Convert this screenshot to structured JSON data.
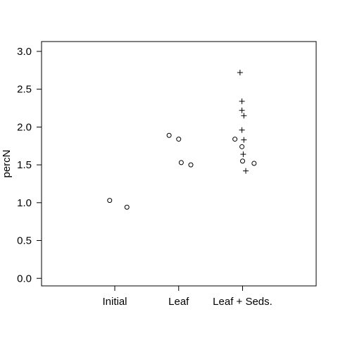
{
  "chart_data": {
    "type": "scatter",
    "title": "",
    "xlabel": "",
    "ylabel": "percN",
    "categories": [
      "Initial",
      "Leaf",
      "Leaf + Seds."
    ],
    "ylim": [
      -0.1,
      3.13
    ],
    "yticks": [
      0.0,
      0.5,
      1.0,
      1.5,
      2.0,
      2.5,
      3.0
    ],
    "ytick_labels": [
      "0.0",
      "0.5",
      "1.0",
      "1.5",
      "2.0",
      "2.5",
      "3.0"
    ],
    "grid": false,
    "legend": "none",
    "series": [
      {
        "marker": "circle",
        "points": [
          {
            "category": 0,
            "offset": -0.08,
            "y": 1.03
          },
          {
            "category": 0,
            "offset": 0.19,
            "y": 0.94
          },
          {
            "category": 1,
            "offset": -0.15,
            "y": 1.89
          },
          {
            "category": 1,
            "offset": 0.0,
            "y": 1.84
          },
          {
            "category": 1,
            "offset": 0.04,
            "y": 1.53
          },
          {
            "category": 1,
            "offset": 0.19,
            "y": 1.5
          },
          {
            "category": 2,
            "offset": -0.12,
            "y": 1.84
          },
          {
            "category": 2,
            "offset": -0.01,
            "y": 1.74
          },
          {
            "category": 2,
            "offset": 0.0,
            "y": 1.55
          },
          {
            "category": 2,
            "offset": 0.18,
            "y": 1.52
          }
        ]
      },
      {
        "marker": "plus",
        "points": [
          {
            "category": 2,
            "offset": -0.04,
            "y": 2.72
          },
          {
            "category": 2,
            "offset": -0.01,
            "y": 2.34
          },
          {
            "category": 2,
            "offset": -0.01,
            "y": 2.22
          },
          {
            "category": 2,
            "offset": 0.02,
            "y": 2.15
          },
          {
            "category": 2,
            "offset": -0.01,
            "y": 1.96
          },
          {
            "category": 2,
            "offset": 0.02,
            "y": 1.83
          },
          {
            "category": 2,
            "offset": 0.01,
            "y": 1.64
          },
          {
            "category": 2,
            "offset": 0.05,
            "y": 1.42
          }
        ]
      }
    ]
  }
}
